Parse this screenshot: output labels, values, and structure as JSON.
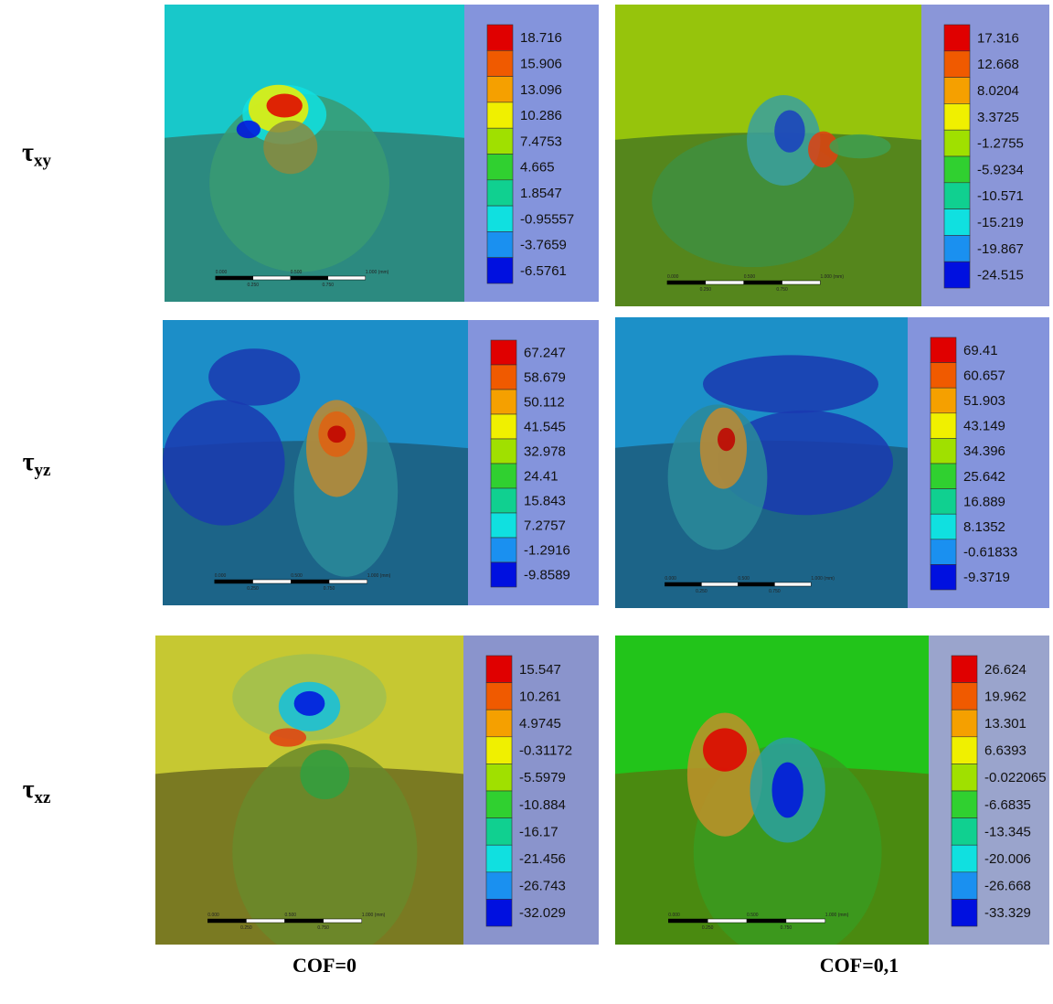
{
  "rows": [
    {
      "symbol": "τ",
      "subscript": "xy",
      "panels": [
        {
          "legend": [
            "18.716",
            "15.906",
            "13.096",
            "10.286",
            "7.4753",
            "4.665",
            "1.8547",
            "-0.95557",
            "-3.7659",
            "-6.5761"
          ]
        },
        {
          "legend": [
            "17.316",
            "12.668",
            "8.0204",
            "3.3725",
            "-1.2755",
            "-5.9234",
            "-10.571",
            "-15.219",
            "-19.867",
            "-24.515"
          ]
        }
      ]
    },
    {
      "symbol": "τ",
      "subscript": "yz",
      "panels": [
        {
          "legend": [
            "67.247",
            "58.679",
            "50.112",
            "41.545",
            "32.978",
            "24.41",
            "15.843",
            "7.2757",
            "-1.2916",
            "-9.8589"
          ]
        },
        {
          "legend": [
            "69.41",
            "60.657",
            "51.903",
            "43.149",
            "34.396",
            "25.642",
            "16.889",
            "8.1352",
            "-0.61833",
            "-9.3719"
          ]
        }
      ]
    },
    {
      "symbol": "τ",
      "subscript": "xz",
      "panels": [
        {
          "legend": [
            "15.547",
            "10.261",
            "4.9745",
            "-0.31172",
            "-5.5979",
            "-10.884",
            "-16.17",
            "-21.456",
            "-26.743",
            "-32.029"
          ]
        },
        {
          "legend": [
            "26.624",
            "19.962",
            "13.301",
            "6.6393",
            "-0.022065",
            "-6.6835",
            "-13.345",
            "-20.006",
            "-26.668",
            "-33.329"
          ]
        }
      ]
    }
  ],
  "columns": [
    "COF=0",
    "COF=0,1"
  ],
  "scale_bar": {
    "top": [
      "0.000",
      "0.500",
      "1.000 (mm)"
    ],
    "bottom": [
      "0.250",
      "0.750"
    ]
  }
}
